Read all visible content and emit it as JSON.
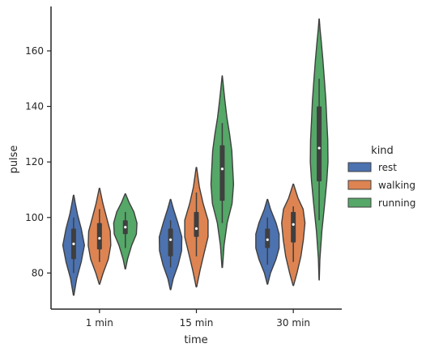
{
  "chart_data": {
    "type": "violin",
    "x": [
      "1 min",
      "15 min",
      "30 min"
    ],
    "xlabel": "time",
    "ylabel": "pulse",
    "ylim": [
      67,
      176
    ],
    "yticks": [
      80,
      100,
      120,
      140,
      160
    ],
    "grid": false,
    "legend": {
      "title": "kind",
      "placement": "right"
    },
    "series": [
      {
        "name": "rest",
        "color": "#4c72b0",
        "groups": [
          {
            "x": "1 min",
            "min": 72,
            "max": 108,
            "q1": 85,
            "median": 90.5,
            "q3": 96,
            "whisker_low": 80,
            "whisker_high": 100,
            "profile": [
              [
                72,
                0.02
              ],
              [
                78,
                0.25
              ],
              [
                84,
                0.62
              ],
              [
                90,
                0.88
              ],
              [
                96,
                0.62
              ],
              [
                101,
                0.32
              ],
              [
                105,
                0.14
              ],
              [
                108,
                0.02
              ]
            ]
          },
          {
            "x": "15 min",
            "min": 74,
            "max": 106.5,
            "q1": 86,
            "median": 92,
            "q3": 96,
            "whisker_low": 82,
            "whisker_high": 99,
            "profile": [
              [
                74,
                0.02
              ],
              [
                78,
                0.22
              ],
              [
                83,
                0.62
              ],
              [
                88,
                0.9
              ],
              [
                93,
                0.92
              ],
              [
                98,
                0.6
              ],
              [
                103,
                0.24
              ],
              [
                106.5,
                0.02
              ]
            ]
          },
          {
            "x": "30 min",
            "min": 76,
            "max": 106.5,
            "q1": 89,
            "median": 92,
            "q3": 96,
            "whisker_low": 83,
            "whisker_high": 100,
            "profile": [
              [
                76,
                0.02
              ],
              [
                80,
                0.25
              ],
              [
                85,
                0.7
              ],
              [
                89,
                0.95
              ],
              [
                94,
                0.95
              ],
              [
                98,
                0.7
              ],
              [
                103,
                0.25
              ],
              [
                106.5,
                0.02
              ]
            ]
          }
        ]
      },
      {
        "name": "walking",
        "color": "#dd8452",
        "groups": [
          {
            "x": "1 min",
            "min": 76,
            "max": 110.5,
            "q1": 88.5,
            "median": 92.5,
            "q3": 98,
            "whisker_low": 84,
            "whisker_high": 103,
            "profile": [
              [
                76,
                0.02
              ],
              [
                80,
                0.3
              ],
              [
                85,
                0.72
              ],
              [
                90,
                0.92
              ],
              [
                95,
                0.88
              ],
              [
                100,
                0.58
              ],
              [
                105,
                0.28
              ],
              [
                110.5,
                0.02
              ]
            ]
          },
          {
            "x": "15 min",
            "min": 75,
            "max": 118,
            "q1": 93,
            "median": 96,
            "q3": 102,
            "whisker_low": 86,
            "whisker_high": 109,
            "profile": [
              [
                75,
                0.02
              ],
              [
                81,
                0.3
              ],
              [
                87,
                0.62
              ],
              [
                93,
                0.95
              ],
              [
                99,
                0.95
              ],
              [
                105,
                0.55
              ],
              [
                111,
                0.24
              ],
              [
                118,
                0.02
              ]
            ]
          },
          {
            "x": "30 min",
            "min": 75.5,
            "max": 112,
            "q1": 91,
            "median": 97.5,
            "q3": 102,
            "whisker_low": 84,
            "whisker_high": 104,
            "profile": [
              [
                75.5,
                0.02
              ],
              [
                80,
                0.3
              ],
              [
                86,
                0.62
              ],
              [
                92,
                0.82
              ],
              [
                98,
                0.95
              ],
              [
                103,
                0.8
              ],
              [
                107,
                0.38
              ],
              [
                112,
                0.02
              ]
            ]
          }
        ]
      },
      {
        "name": "running",
        "color": "#55a868",
        "groups": [
          {
            "x": "1 min",
            "min": 81.5,
            "max": 108.5,
            "q1": 94,
            "median": 96.5,
            "q3": 99,
            "whisker_low": 89,
            "whisker_high": 102,
            "profile": [
              [
                81.5,
                0.02
              ],
              [
                85,
                0.18
              ],
              [
                90,
                0.52
              ],
              [
                94,
                0.9
              ],
              [
                98,
                0.95
              ],
              [
                102,
                0.7
              ],
              [
                105.5,
                0.3
              ],
              [
                108.5,
                0.02
              ]
            ]
          },
          {
            "x": "15 min",
            "min": 82,
            "max": 151,
            "q1": 106,
            "median": 117.5,
            "q3": 126,
            "whisker_low": 98,
            "whisker_high": 134,
            "profile": [
              [
                82,
                0.02
              ],
              [
                90,
                0.15
              ],
              [
                98,
                0.4
              ],
              [
                105,
                0.8
              ],
              [
                112,
                0.92
              ],
              [
                118,
                0.85
              ],
              [
                124,
                0.78
              ],
              [
                130,
                0.6
              ],
              [
                136,
                0.38
              ],
              [
                142,
                0.22
              ],
              [
                147,
                0.1
              ],
              [
                151,
                0.01
              ]
            ]
          },
          {
            "x": "30 min",
            "min": 77.5,
            "max": 171.5,
            "q1": 113,
            "median": 125,
            "q3": 140,
            "whisker_low": 99,
            "whisker_high": 150,
            "profile": [
              [
                77.5,
                0.01
              ],
              [
                85,
                0.06
              ],
              [
                95,
                0.22
              ],
              [
                105,
                0.45
              ],
              [
                113,
                0.62
              ],
              [
                120,
                0.72
              ],
              [
                128,
                0.7
              ],
              [
                135,
                0.62
              ],
              [
                142,
                0.55
              ],
              [
                150,
                0.42
              ],
              [
                157,
                0.3
              ],
              [
                163,
                0.18
              ],
              [
                168,
                0.07
              ],
              [
                171.5,
                0.01
              ]
            ]
          }
        ]
      }
    ]
  }
}
